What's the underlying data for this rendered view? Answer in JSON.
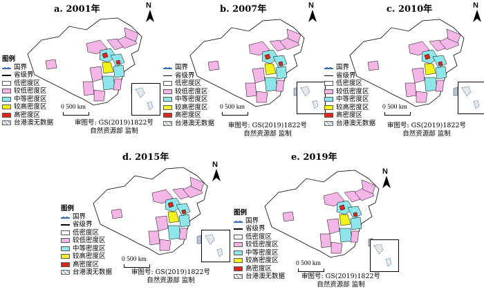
{
  "colors": {
    "low": "#ffffff",
    "lower": "#f4b6e6",
    "medium": "#8fe6ea",
    "higher": "#f2f21e",
    "high": "#e0261c",
    "border": "#000000",
    "nodata": "#b6c6d8"
  },
  "legend": {
    "title": "图例",
    "country_border": "国界",
    "province_border": "省级界",
    "low": "低密度区",
    "lower": "较低密度区",
    "medium": "中等密度区",
    "higher": "较高密度区",
    "high": "高密度区",
    "nodata": "台港澳无数据"
  },
  "north": "N",
  "scale": "0  500 km",
  "audit_line1": "审图号: GS(2019)1822号",
  "audit_line2": "自然资源部 监制",
  "panels": [
    {
      "title": "a. 2001年"
    },
    {
      "title": "b. 2007年"
    },
    {
      "title": "c. 2010年"
    },
    {
      "title": "d. 2015年"
    },
    {
      "title": "e. 2019年"
    }
  ]
}
